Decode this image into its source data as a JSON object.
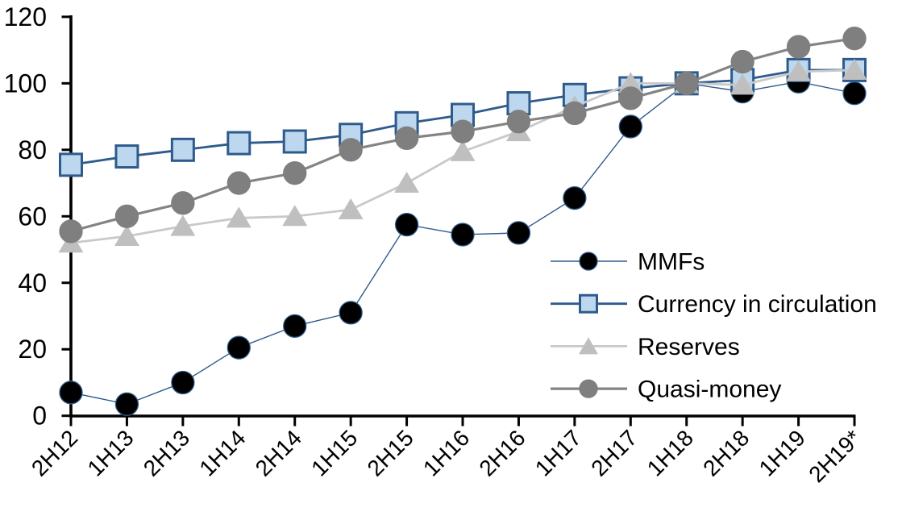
{
  "chart_data": {
    "type": "line",
    "title": "",
    "xlabel": "",
    "ylabel": "",
    "grid": false,
    "legend_position": "inside-right",
    "categories": [
      "2H12",
      "1H13",
      "2H13",
      "1H14",
      "2H14",
      "1H15",
      "2H15",
      "1H16",
      "2H16",
      "1H17",
      "2H17",
      "1H18",
      "2H18",
      "1H19",
      "2H19*"
    ],
    "y_axis": {
      "min": 0,
      "max": 120,
      "step": 20,
      "tick_labels": [
        "0",
        "20",
        "40",
        "60",
        "80",
        "100",
        "120"
      ]
    },
    "series": [
      {
        "name": "MMFs",
        "marker": "circle",
        "marker_fill": "#000000",
        "marker_stroke": "#2E5B8C",
        "line_color": "#2E5B8C",
        "line_width": 1.4,
        "values": [
          7,
          3.5,
          10,
          20.5,
          27,
          31,
          57.5,
          54.5,
          55,
          65.5,
          87,
          100,
          97.5,
          100.5,
          97
        ]
      },
      {
        "name": "Currency in circulation",
        "marker": "square",
        "marker_fill": "#BDD7EE",
        "marker_stroke": "#2E5B8C",
        "line_color": "#2E5B8C",
        "line_width": 2.8,
        "values": [
          75.5,
          78,
          80,
          82,
          82.5,
          84.5,
          88,
          90.5,
          94,
          96.5,
          98.5,
          100,
          101,
          104,
          104
        ]
      },
      {
        "name": "Reserves",
        "marker": "triangle",
        "marker_fill": "#BFBFBF",
        "marker_stroke": "#BFBFBF",
        "line_color": "#C9C9C9",
        "line_width": 2.8,
        "values": [
          52,
          54,
          57,
          59.5,
          60,
          62,
          70,
          79.5,
          85.5,
          93,
          100,
          100,
          99.5,
          103.5,
          104
        ]
      },
      {
        "name": "Quasi-money",
        "marker": "circle",
        "marker_fill": "#7F7F7F",
        "marker_stroke": "#7F7F7F",
        "line_color": "#848484",
        "line_width": 3.2,
        "values": [
          55.5,
          60,
          64,
          70,
          73,
          80,
          83.5,
          85.5,
          88.5,
          91,
          95.5,
          100,
          106.5,
          111,
          113.5
        ]
      }
    ],
    "axis_color": "#000000"
  }
}
